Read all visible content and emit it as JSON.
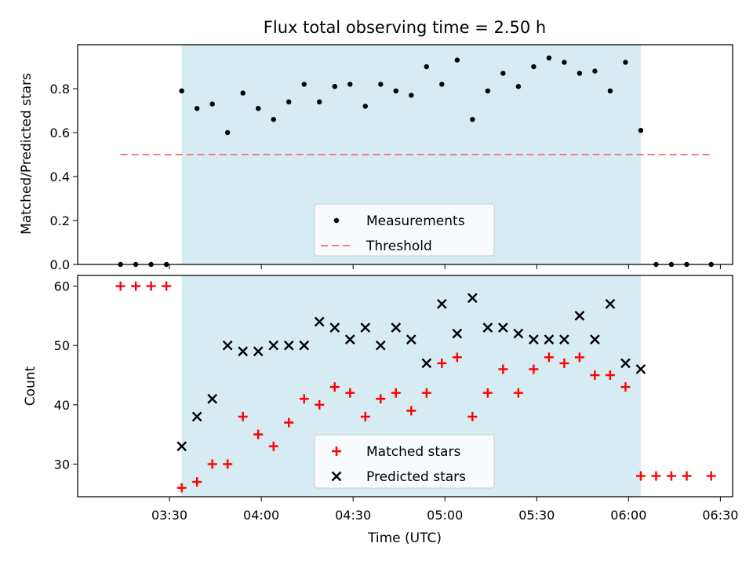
{
  "chart_data": [
    {
      "type": "scatter",
      "title": "Flux total observing time = 2.50 h",
      "ylabel": "Matched/Predicted stars",
      "xlabel": "",
      "ylim": [
        0,
        1.0
      ],
      "yticks": [
        "0.0",
        "0.2",
        "0.4",
        "0.6",
        "0.8"
      ],
      "ytick_values": [
        0,
        0.2,
        0.4,
        0.6,
        0.8
      ],
      "grid": false,
      "legend_position": "lower-center",
      "shaded_span": {
        "start": "03:34",
        "end": "06:04",
        "color": "#add8e6"
      },
      "series": [
        {
          "name": "Measurements",
          "marker": "dot",
          "color": "#000000",
          "x": [
            "03:14",
            "03:19",
            "03:24",
            "03:29",
            "03:34",
            "03:39",
            "03:44",
            "03:49",
            "03:54",
            "03:59",
            "04:04",
            "04:09",
            "04:14",
            "04:19",
            "04:24",
            "04:29",
            "04:34",
            "04:39",
            "04:44",
            "04:49",
            "04:54",
            "04:59",
            "05:04",
            "05:09",
            "05:14",
            "05:19",
            "05:24",
            "05:29",
            "05:34",
            "05:39",
            "05:44",
            "05:49",
            "05:54",
            "05:59",
            "06:04",
            "06:09",
            "06:14",
            "06:19",
            "06:27"
          ],
          "y": [
            0,
            0,
            0,
            0,
            0.79,
            0.71,
            0.73,
            0.6,
            0.78,
            0.71,
            0.66,
            0.74,
            0.82,
            0.74,
            0.81,
            0.82,
            0.72,
            0.82,
            0.79,
            0.77,
            0.9,
            0.82,
            0.93,
            0.66,
            0.79,
            0.87,
            0.81,
            0.9,
            0.94,
            0.92,
            0.87,
            0.88,
            0.79,
            0.92,
            0.61,
            0,
            0,
            0,
            0
          ]
        },
        {
          "name": "Threshold",
          "marker": "dashed-line",
          "color": "#f08080",
          "x": [
            "03:14",
            "06:27"
          ],
          "y": [
            0.5,
            0.5
          ]
        }
      ]
    },
    {
      "type": "scatter",
      "title": "",
      "ylabel": "Count",
      "xlabel": "Time (UTC)",
      "ylim": [
        24.5,
        61.8
      ],
      "yticks": [
        "30",
        "40",
        "50",
        "60"
      ],
      "ytick_values": [
        30,
        40,
        50,
        60
      ],
      "xticks": [
        "03:30",
        "04:00",
        "04:30",
        "05:00",
        "05:30",
        "06:00",
        "06:30"
      ],
      "xlim": [
        "03:00",
        "06:34"
      ],
      "grid": false,
      "legend_position": "lower-center",
      "shaded_span": {
        "start": "03:34",
        "end": "06:04",
        "color": "#add8e6"
      },
      "series": [
        {
          "name": "Matched stars",
          "marker": "plus",
          "color": "#ff0000",
          "x": [
            "03:14",
            "03:19",
            "03:24",
            "03:29",
            "03:34",
            "03:39",
            "03:44",
            "03:49",
            "03:54",
            "03:59",
            "04:04",
            "04:09",
            "04:14",
            "04:19",
            "04:24",
            "04:29",
            "04:34",
            "04:39",
            "04:44",
            "04:49",
            "04:54",
            "04:59",
            "05:04",
            "05:09",
            "05:14",
            "05:19",
            "05:24",
            "05:29",
            "05:34",
            "05:39",
            "05:44",
            "05:49",
            "05:54",
            "05:59",
            "06:04",
            "06:09",
            "06:14",
            "06:19",
            "06:27"
          ],
          "y": [
            60,
            60,
            60,
            60,
            26,
            27,
            30,
            30,
            38,
            35,
            33,
            37,
            41,
            40,
            43,
            42,
            38,
            41,
            42,
            39,
            42,
            47,
            48,
            38,
            42,
            46,
            42,
            46,
            48,
            47,
            48,
            45,
            45,
            43,
            28,
            28,
            28,
            28,
            28
          ]
        },
        {
          "name": "Predicted stars",
          "marker": "x",
          "color": "#000000",
          "x": [
            "03:34",
            "03:39",
            "03:44",
            "03:49",
            "03:54",
            "03:59",
            "04:04",
            "04:09",
            "04:14",
            "04:19",
            "04:24",
            "04:29",
            "04:34",
            "04:39",
            "04:44",
            "04:49",
            "04:54",
            "04:59",
            "05:04",
            "05:09",
            "05:14",
            "05:19",
            "05:24",
            "05:29",
            "05:34",
            "05:39",
            "05:44",
            "05:49",
            "05:54",
            "05:59",
            "06:04"
          ],
          "y": [
            33,
            38,
            41,
            50,
            49,
            49,
            50,
            50,
            50,
            54,
            53,
            51,
            53,
            50,
            53,
            51,
            47,
            57,
            52,
            58,
            53,
            53,
            52,
            51,
            51,
            51,
            55,
            51,
            57,
            47,
            46
          ]
        }
      ]
    }
  ]
}
